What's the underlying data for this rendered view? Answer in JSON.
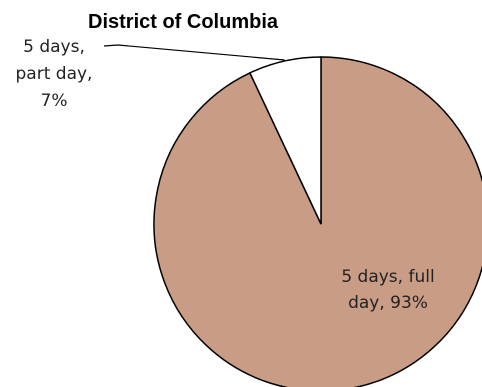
{
  "chart_data": {
    "type": "pie",
    "title": "District of Columbia",
    "start_angle_deg": 0,
    "direction": "clockwise",
    "slices": [
      {
        "name": "5 days, full day",
        "value": 93,
        "label_lines": [
          "5 days, full",
          "day, 93%"
        ],
        "color": "#c99c86"
      },
      {
        "name": "5 days, part day",
        "value": 7,
        "label_lines": [
          "5 days,",
          "part day,",
          "7%"
        ],
        "color": "#ffffff"
      }
    ],
    "stroke_color": "#000000"
  }
}
